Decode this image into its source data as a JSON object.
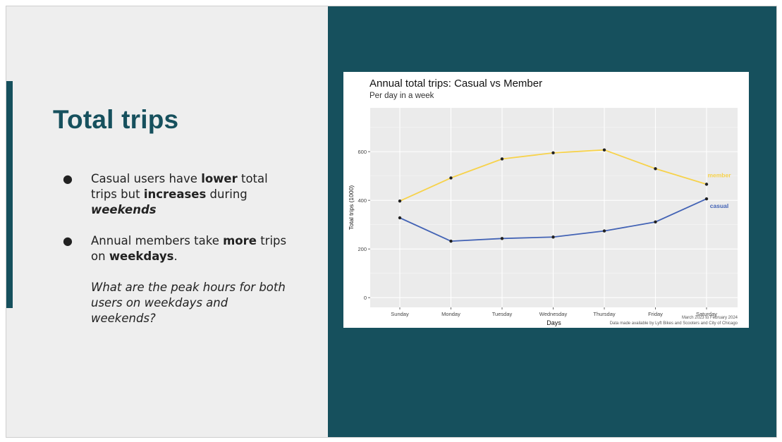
{
  "slide": {
    "title": "Total trips",
    "bullets": [
      {
        "parts": [
          {
            "text": "Casual users have ",
            "bold": false,
            "italic": false
          },
          {
            "text": "lower",
            "bold": true,
            "italic": false
          },
          {
            "text": " total trips but ",
            "bold": false,
            "italic": false
          },
          {
            "text": "increases",
            "bold": true,
            "italic": false
          },
          {
            "text": " during ",
            "bold": false,
            "italic": false
          },
          {
            "text": "weekends",
            "bold": true,
            "italic": true
          }
        ]
      },
      {
        "parts": [
          {
            "text": "Annual members take ",
            "bold": false,
            "italic": false
          },
          {
            "text": "more",
            "bold": true,
            "italic": false
          },
          {
            "text": " trips on ",
            "bold": false,
            "italic": false
          },
          {
            "text": "weekdays",
            "bold": true,
            "italic": false
          },
          {
            "text": ".",
            "bold": false,
            "italic": false
          }
        ],
        "question": "What are the peak hours for both users  on weekdays and weekends?"
      }
    ],
    "colors": {
      "left_bg": "#eeeeee",
      "right_bg": "#16505d",
      "title": "#16505d"
    }
  },
  "chart_data": {
    "type": "line",
    "title": "Annual total trips: Casual vs Member",
    "subtitle": "Per day in a week",
    "xlabel": "Days",
    "ylabel": "Total trips (1000)",
    "categories": [
      "Sunday",
      "Monday",
      "Tuesday",
      "Wednesday",
      "Thursday",
      "Friday",
      "Saturday"
    ],
    "ylim": [
      -40,
      780
    ],
    "yticks": [
      0,
      200,
      400,
      600
    ],
    "grid": true,
    "series": [
      {
        "name": "member",
        "color": "#f7d24a",
        "values": [
          397,
          492,
          570,
          595,
          607,
          530,
          466
        ]
      },
      {
        "name": "casual",
        "color": "#4363b5",
        "values": [
          328,
          232,
          243,
          249,
          274,
          311,
          406
        ]
      }
    ],
    "caption_lines": [
      "March 2023 to February 2024",
      "Data made available by Lyft Bikes and Scooters and City of Chicago"
    ]
  }
}
